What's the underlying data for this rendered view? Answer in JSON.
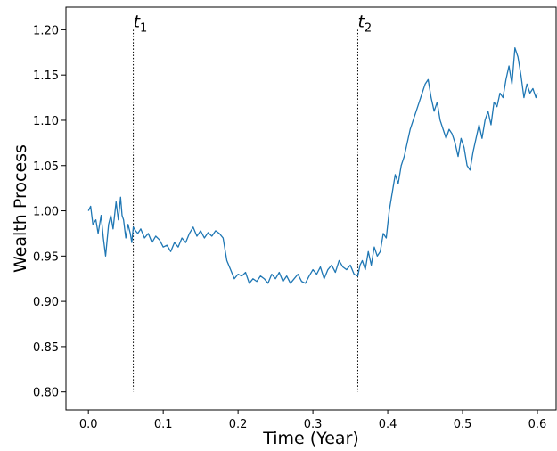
{
  "chart_data": {
    "type": "line",
    "xlabel": "Time (Year)",
    "ylabel": "Wealth Process",
    "xlim": [
      -0.03,
      0.625
    ],
    "ylim": [
      0.78,
      1.225
    ],
    "x_ticks": [
      0.0,
      0.1,
      0.2,
      0.3,
      0.4,
      0.5,
      0.6
    ],
    "x_tick_labels": [
      "0.0",
      "0.1",
      "0.2",
      "0.3",
      "0.4",
      "0.5",
      "0.6"
    ],
    "y_ticks": [
      0.8,
      0.85,
      0.9,
      0.95,
      1.0,
      1.05,
      1.1,
      1.15,
      1.2
    ],
    "y_tick_labels": [
      "0.80",
      "0.85",
      "0.90",
      "0.95",
      "1.00",
      "1.05",
      "1.10",
      "1.15",
      "1.20"
    ],
    "grid": false,
    "vertical_lines": [
      {
        "x": 0.06,
        "y_from": 0.8,
        "y_to": 1.2,
        "label_main": "t",
        "label_sub": "1"
      },
      {
        "x": 0.36,
        "y_from": 0.8,
        "y_to": 1.2,
        "label_main": "t",
        "label_sub": "2"
      }
    ],
    "series": [
      {
        "color": "#1f77b4",
        "x": [
          0.0,
          0.003,
          0.006,
          0.01,
          0.013,
          0.017,
          0.02,
          0.023,
          0.027,
          0.03,
          0.033,
          0.037,
          0.04,
          0.043,
          0.045,
          0.047,
          0.05,
          0.053,
          0.056,
          0.058,
          0.06,
          0.063,
          0.066,
          0.07,
          0.075,
          0.08,
          0.085,
          0.09,
          0.095,
          0.1,
          0.105,
          0.11,
          0.115,
          0.12,
          0.125,
          0.13,
          0.135,
          0.14,
          0.145,
          0.15,
          0.155,
          0.16,
          0.165,
          0.17,
          0.175,
          0.18,
          0.185,
          0.19,
          0.195,
          0.2,
          0.205,
          0.21,
          0.215,
          0.22,
          0.225,
          0.23,
          0.235,
          0.24,
          0.245,
          0.25,
          0.255,
          0.26,
          0.265,
          0.27,
          0.275,
          0.28,
          0.285,
          0.29,
          0.295,
          0.3,
          0.305,
          0.31,
          0.315,
          0.32,
          0.325,
          0.33,
          0.335,
          0.34,
          0.345,
          0.35,
          0.355,
          0.36,
          0.363,
          0.366,
          0.37,
          0.374,
          0.378,
          0.382,
          0.386,
          0.39,
          0.394,
          0.398,
          0.402,
          0.406,
          0.41,
          0.414,
          0.418,
          0.422,
          0.426,
          0.43,
          0.434,
          0.438,
          0.442,
          0.446,
          0.45,
          0.454,
          0.458,
          0.462,
          0.466,
          0.47,
          0.474,
          0.478,
          0.482,
          0.486,
          0.49,
          0.494,
          0.498,
          0.502,
          0.506,
          0.51,
          0.514,
          0.518,
          0.522,
          0.526,
          0.53,
          0.534,
          0.538,
          0.542,
          0.546,
          0.55,
          0.554,
          0.558,
          0.562,
          0.566,
          0.57,
          0.574,
          0.578,
          0.582,
          0.586,
          0.59,
          0.594,
          0.598,
          0.6
        ],
        "y": [
          1.0,
          1.005,
          0.985,
          0.99,
          0.975,
          0.995,
          0.97,
          0.95,
          0.985,
          0.995,
          0.98,
          1.01,
          0.99,
          1.015,
          0.995,
          0.99,
          0.97,
          0.985,
          0.975,
          0.965,
          0.982,
          0.978,
          0.975,
          0.98,
          0.97,
          0.975,
          0.965,
          0.972,
          0.968,
          0.96,
          0.962,
          0.955,
          0.965,
          0.96,
          0.97,
          0.965,
          0.975,
          0.982,
          0.972,
          0.978,
          0.97,
          0.976,
          0.972,
          0.978,
          0.975,
          0.97,
          0.945,
          0.935,
          0.925,
          0.93,
          0.928,
          0.932,
          0.92,
          0.925,
          0.922,
          0.928,
          0.925,
          0.92,
          0.93,
          0.925,
          0.932,
          0.922,
          0.928,
          0.92,
          0.925,
          0.93,
          0.922,
          0.92,
          0.928,
          0.935,
          0.93,
          0.938,
          0.925,
          0.935,
          0.94,
          0.932,
          0.945,
          0.938,
          0.935,
          0.94,
          0.93,
          0.928,
          0.94,
          0.945,
          0.935,
          0.955,
          0.94,
          0.96,
          0.95,
          0.955,
          0.975,
          0.97,
          1.0,
          1.02,
          1.04,
          1.03,
          1.05,
          1.06,
          1.075,
          1.09,
          1.1,
          1.11,
          1.12,
          1.13,
          1.14,
          1.145,
          1.125,
          1.11,
          1.12,
          1.1,
          1.09,
          1.08,
          1.09,
          1.085,
          1.075,
          1.06,
          1.08,
          1.07,
          1.05,
          1.045,
          1.065,
          1.08,
          1.095,
          1.08,
          1.1,
          1.11,
          1.095,
          1.12,
          1.115,
          1.13,
          1.125,
          1.145,
          1.16,
          1.14,
          1.18,
          1.17,
          1.15,
          1.125,
          1.14,
          1.13,
          1.135,
          1.125,
          1.13
        ]
      }
    ]
  }
}
